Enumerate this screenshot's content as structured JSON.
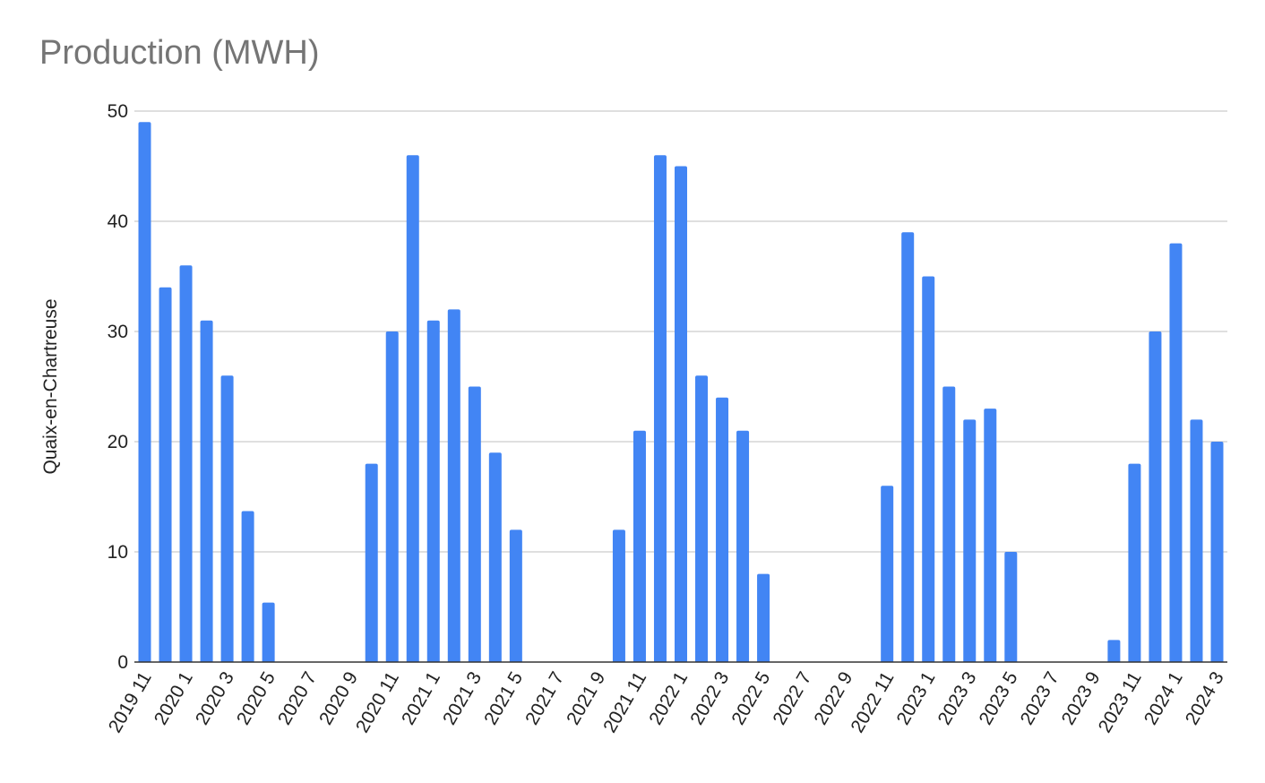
{
  "chart_data": {
    "type": "bar",
    "title": "Production (MWH)",
    "xlabel": "",
    "ylabel": "Quaix-en-Chartreuse",
    "ylim": [
      0,
      50
    ],
    "yticks": [
      "0",
      "10",
      "20",
      "30",
      "40",
      "50"
    ],
    "grid": true,
    "bar_color": "#4285f4",
    "categories": [
      "2019 11",
      "2019 12",
      "2020 1",
      "2020 2",
      "2020 3",
      "2020 4",
      "2020 5",
      "2020 6",
      "2020 7",
      "2020 8",
      "2020 9",
      "2020 10",
      "2020 11",
      "2020 12",
      "2021 1",
      "2021 2",
      "2021 3",
      "2021 4",
      "2021 5",
      "2021 6",
      "2021 7",
      "2021 8",
      "2021 9",
      "2021 10",
      "2021 11",
      "2021 12",
      "2022 1",
      "2022 2",
      "2022 3",
      "2022 4",
      "2022 5",
      "2022 6",
      "2022 7",
      "2022 8",
      "2022 9",
      "2022 10",
      "2022 11",
      "2022 12",
      "2023 1",
      "2023 2",
      "2023 3",
      "2023 4",
      "2023 5",
      "2023 6",
      "2023 7",
      "2023 8",
      "2023 9",
      "2023 10",
      "2023 11",
      "2023 12",
      "2024 1",
      "2024 2",
      "2024 3"
    ],
    "values": [
      49,
      34,
      36,
      31,
      26,
      13.7,
      5.4,
      0,
      0,
      0,
      0,
      18,
      30,
      46,
      31,
      32,
      25,
      19,
      12,
      0,
      0,
      0,
      0,
      12,
      21,
      46,
      45,
      26,
      24,
      21,
      8,
      0,
      0,
      0,
      0,
      0,
      16,
      39,
      35,
      25,
      22,
      23,
      10,
      0,
      0,
      0,
      0,
      2,
      18,
      30,
      38,
      22,
      20
    ],
    "xtick_labels": [
      "2019 11",
      "2020 1",
      "2020 3",
      "2020 5",
      "2020 7",
      "2020 9",
      "2020 11",
      "2021 1",
      "2021 3",
      "2021 5",
      "2021 7",
      "2021 9",
      "2021 11",
      "2022 1",
      "2022 3",
      "2022 5",
      "2022 7",
      "2022 9",
      "2022 11",
      "2023 1",
      "2023 3",
      "2023 5",
      "2023 7",
      "2023 9",
      "2023 11",
      "2024 1",
      "2024 3"
    ]
  }
}
